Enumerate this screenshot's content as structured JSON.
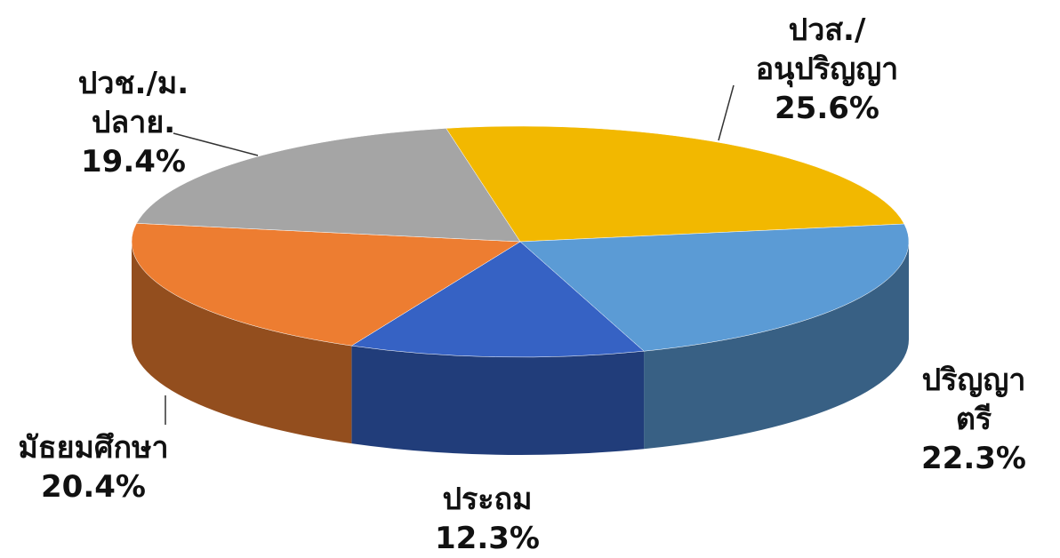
{
  "chart_data": {
    "type": "pie",
    "categories": [
      "ปวส./\nอนุปริญญา",
      "ปริญญาตรี",
      "ประถม",
      "มัธยมศึกษา",
      "ปวช./ม.\nปลาย."
    ],
    "values": [
      25.6,
      22.3,
      12.3,
      20.4,
      19.4
    ],
    "value_labels": [
      "25.6%",
      "22.3%",
      "12.3%",
      "20.4%",
      "19.4%"
    ],
    "colors": [
      "#f2b800",
      "#5b9bd5",
      "#3662c4",
      "#ed7d31",
      "#a5a5a5"
    ]
  }
}
